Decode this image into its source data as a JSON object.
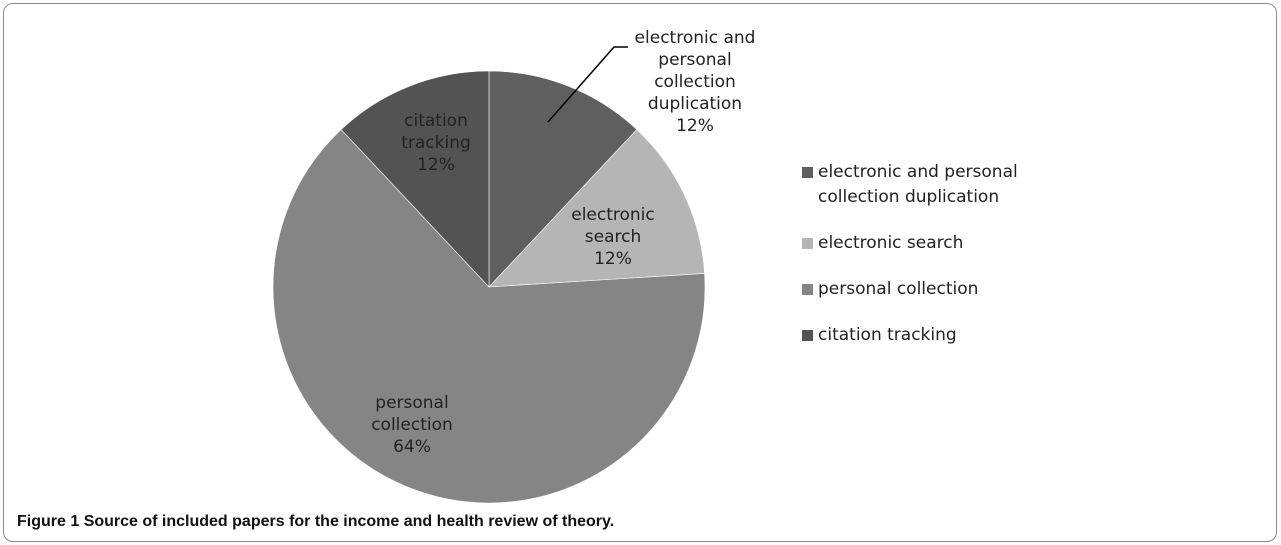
{
  "chart_data": {
    "type": "pie",
    "slices": [
      {
        "label": "electronic and personal collection duplication",
        "value": 12,
        "display_lines": [
          "electronic and",
          "personal",
          "collection",
          "duplication",
          "12%"
        ],
        "color": "#5f5f5f"
      },
      {
        "label": "electronic search",
        "value": 12,
        "display_lines": [
          "electronic",
          "search",
          "12%"
        ],
        "color": "#b5b5b5"
      },
      {
        "label": "personal collection",
        "value": 64,
        "display_lines": [
          "personal",
          "collection",
          "64%"
        ],
        "color": "#858585"
      },
      {
        "label": "citation tracking",
        "value": 12,
        "display_lines": [
          "citation",
          "tracking",
          "12%"
        ],
        "color": "#535353"
      }
    ],
    "legend": {
      "placement": "right",
      "items": [
        {
          "label": "electronic and personal collection duplication",
          "color": "#5f5f5f"
        },
        {
          "label": "electronic search",
          "color": "#b5b5b5"
        },
        {
          "label": "personal collection",
          "color": "#858585"
        },
        {
          "label": "citation tracking",
          "color": "#535353"
        }
      ]
    }
  },
  "caption": {
    "figure_number": "Figure 1",
    "text": "Source of included papers for the income and health review of theory."
  }
}
